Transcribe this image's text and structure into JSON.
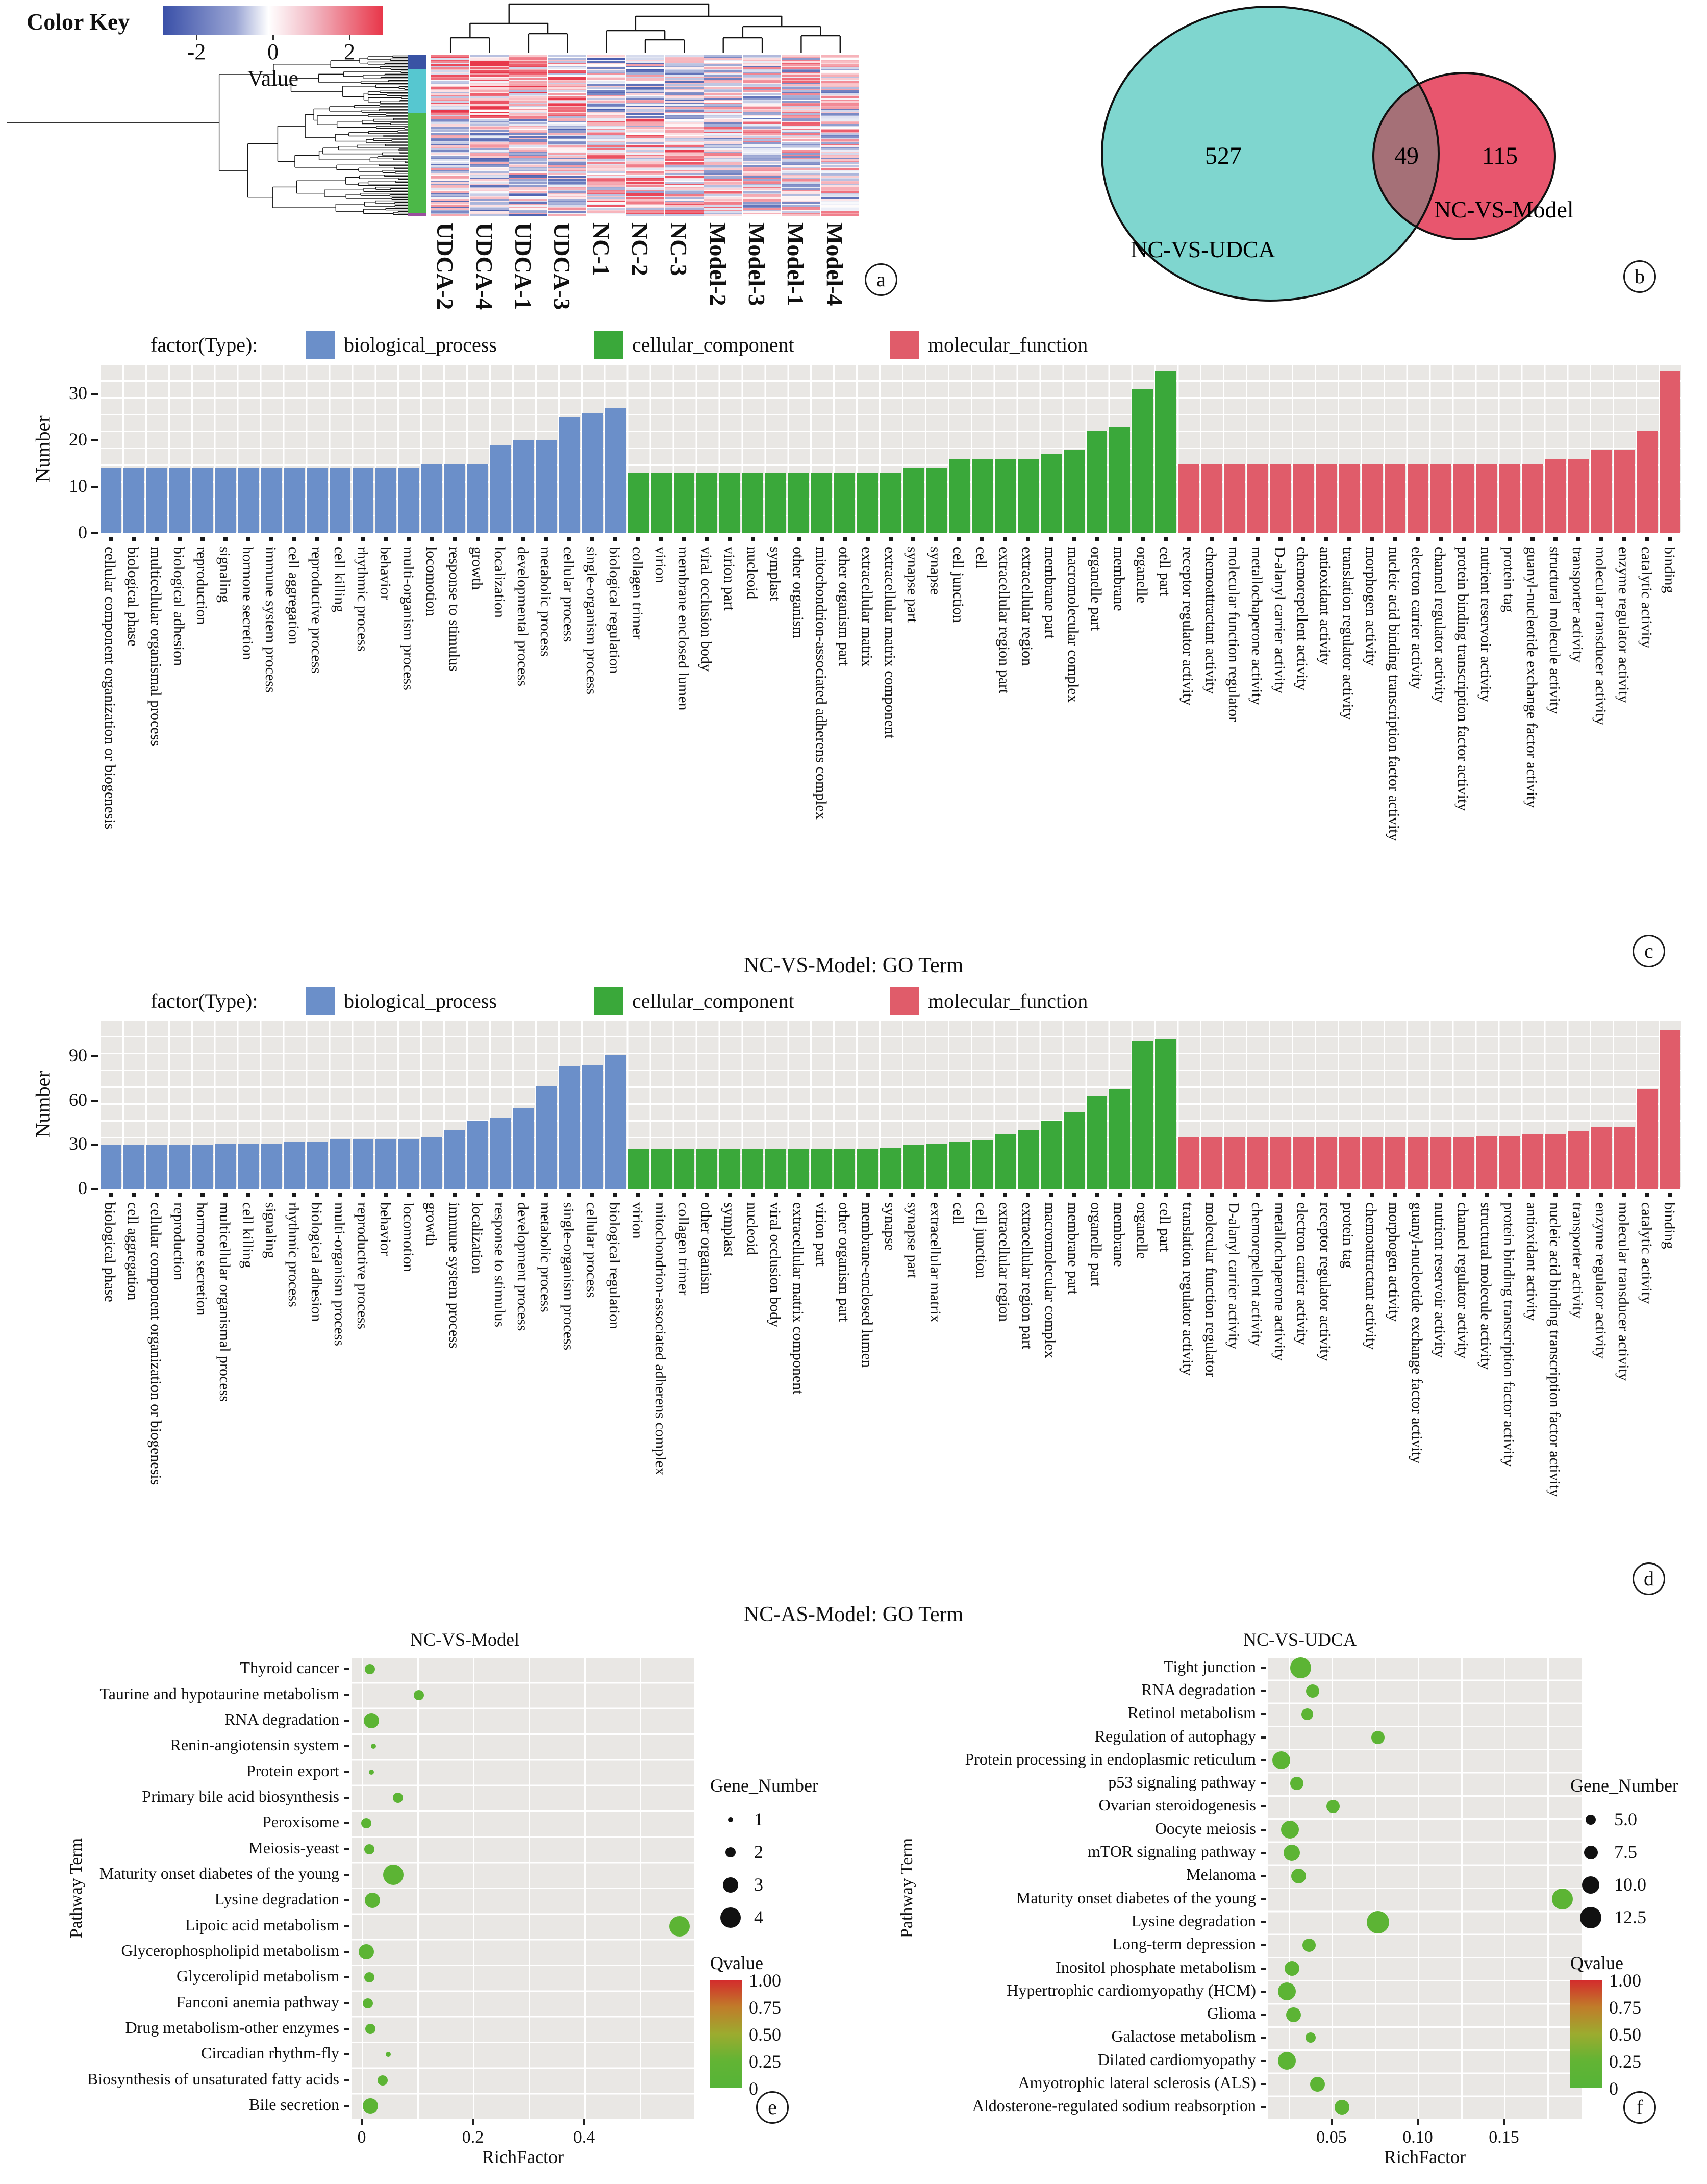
{
  "chart_data": [
    {
      "id": "a",
      "type": "heatmap",
      "title": "Color Key",
      "color_key": {
        "ticks": [
          "-2",
          "0",
          "2"
        ],
        "label": "Value"
      },
      "palette": {
        "low": "#3a50a8",
        "mid": "#ffffff",
        "high": "#e8374a"
      },
      "samples": [
        "UDCA-2",
        "UDCA-4",
        "UDCA-1",
        "UDCA-3",
        "NC-1",
        "NC-2",
        "NC-3",
        "Model-2",
        "Model-3",
        "Model-1",
        "Model-4"
      ],
      "clusters": [
        {
          "color": "#3953a4",
          "frac": 0.09
        },
        {
          "color": "#56c7d0",
          "frac": 0.27
        },
        {
          "color": "#4cb848",
          "frac": 0.625
        },
        {
          "color": "#9a4f9e",
          "frac": 0.015
        }
      ],
      "badge": "a"
    },
    {
      "id": "b",
      "type": "venn",
      "sets": [
        {
          "label": "NC-VS-UDCA",
          "count": 527,
          "color": "#7fd6cf"
        },
        {
          "label": "NC-VS-Model",
          "count": 115,
          "color": "#e8566e"
        }
      ],
      "overlap": 49,
      "overlap_color": "#a57077",
      "badge": "b"
    },
    {
      "id": "c",
      "type": "bar",
      "title": "NC-VS-Model: GO Term",
      "legend_title": "factor(Type):",
      "ylabel": "Number",
      "yticks": [
        0,
        10,
        20,
        30
      ],
      "ylim": [
        0,
        36.5
      ],
      "series": [
        {
          "name": "biological_process",
          "color": "#6b8fc9",
          "categories": [
            "cellular component organization or biogenesis",
            "biological phase",
            "multicellular organismal process",
            "biological adhesion",
            "reproduction",
            "signaling",
            "hormone secretion",
            "immune system process",
            "cell aggregation",
            "reproductive process",
            "cell killing",
            "rhythmic process",
            "behavior",
            "multi-organism process",
            "locomotion",
            "response to stimulus",
            "growth",
            "localization",
            "developmental process",
            "metabolic process",
            "cellular process",
            "single-organism process",
            "biological regulation"
          ],
          "values": [
            14,
            14,
            14,
            14,
            14,
            14,
            14,
            14,
            14,
            14,
            14,
            14,
            14,
            14,
            15,
            15,
            15,
            19,
            20,
            20,
            25,
            26,
            27
          ]
        },
        {
          "name": "cellular_component",
          "color": "#3aa83a",
          "categories": [
            "collagen trimer",
            "virion",
            "membrane enclosed lumen",
            "viral occlusion body",
            "virion part",
            "nucleoid",
            "symplast",
            "other organism",
            "mitochondrion-associated adherens complex",
            "other organism part",
            "extracellular matrix",
            "extracellular matrix component",
            "synapse part",
            "synapse",
            "cell junction",
            "cell",
            "extracellular region part",
            "extracellular region",
            "membrane part",
            "macromolecular complex",
            "organelle part",
            "membrane",
            "organelle",
            "cell part"
          ],
          "values": [
            13,
            13,
            13,
            13,
            13,
            13,
            13,
            13,
            13,
            13,
            13,
            13,
            14,
            14,
            16,
            16,
            16,
            16,
            17,
            18,
            22,
            23,
            31,
            35
          ]
        },
        {
          "name": "molecular_function",
          "color": "#e05c6a",
          "categories": [
            "receptor regulator activity",
            "chemoattractant activity",
            "molecular function regulator",
            "metallochaperone activity",
            "D-alanyl carrier activity",
            "chemorepellent activity",
            "antioxidant activity",
            "translation regulator activity",
            "morphogen activity",
            "nucleic acid binding transcription factor activity",
            "electron carrier activity",
            "channel regulator activity",
            "protein binding transcription factor activity",
            "nutrient reservoir activity",
            "protein tag",
            "guanyl-nucleotide exchange factor activity",
            "structural molecule activity",
            "transporter activity",
            "molecular transducer activity",
            "enzyme regulator activity",
            "catalytic activity",
            "binding"
          ],
          "values": [
            15,
            15,
            15,
            15,
            15,
            15,
            15,
            15,
            15,
            15,
            15,
            15,
            15,
            15,
            15,
            15,
            16,
            16,
            18,
            18,
            22,
            35
          ]
        }
      ],
      "badge": "c"
    },
    {
      "id": "d",
      "type": "bar",
      "title": "NC-AS-Model: GO Term",
      "legend_title": "factor(Type):",
      "ylabel": "Number",
      "yticks": [
        0,
        30,
        60,
        90
      ],
      "ylim": [
        0,
        115
      ],
      "series": [
        {
          "name": "biological_process",
          "color": "#6b8fc9",
          "categories": [
            "biological phase",
            "cell aggregation",
            "cellular component organization or biogenesis",
            "reproduction",
            "hormone secretion",
            "multicellular organismal process",
            "cell killing",
            "signaling",
            "rhythmic process",
            "biological adhesion",
            "multi-organism process",
            "reproductive process",
            "behavior",
            "locomotion",
            "growth",
            "immune system process",
            "localization",
            "response to stimulus",
            "development process",
            "metabolic process",
            "single-organism process",
            "cellular process",
            "biological regulation"
          ],
          "values": [
            30,
            30,
            30,
            30,
            30,
            31,
            31,
            31,
            32,
            32,
            34,
            34,
            34,
            34,
            35,
            40,
            46,
            48,
            55,
            70,
            83,
            84,
            91
          ]
        },
        {
          "name": "cellular_component",
          "color": "#3aa83a",
          "categories": [
            "virion",
            "mitochondrion-associated adherens complex",
            "collagen trimer",
            "other organism",
            "symplast",
            "nucleoid",
            "viral occlusion body",
            "extracellular matrix component",
            "virion part",
            "other organism part",
            "membrane-enclosed lumen",
            "synapse",
            "synapse part",
            "extracellular matrix",
            "cell",
            "cell junction",
            "extracellular region",
            "extracellular region part",
            "macromolecular complex",
            "membrane part",
            "organelle part",
            "membrane",
            "organelle",
            "cell part"
          ],
          "values": [
            27,
            27,
            27,
            27,
            27,
            27,
            27,
            27,
            27,
            27,
            27,
            28,
            30,
            31,
            32,
            33,
            37,
            40,
            46,
            52,
            63,
            68,
            100,
            102
          ]
        },
        {
          "name": "molecular_function",
          "color": "#e05c6a",
          "categories": [
            "translation regulator activity",
            "molecular function regulator",
            "D-alanyl carrier activity",
            "chemorepellent activity",
            "metallochaperone activity",
            "electron carrier activity",
            "receptor regulator activity",
            "protein tag",
            "chemoattractant activity",
            "morphogen activity",
            "guanyl-nucleotide exchange factor activity",
            "nutrient reservoir activity",
            "channel regulator activity",
            "structural molecule activity",
            "protein binding transcription factor activity",
            "antioxidant activity",
            "nucleic acid binding transcription factor activity",
            "transporter activity",
            "enzyme regulator activity",
            "molecular transducer activity",
            "catalytic activity",
            "binding"
          ],
          "values": [
            35,
            35,
            35,
            35,
            35,
            35,
            35,
            35,
            35,
            35,
            35,
            35,
            35,
            36,
            36,
            37,
            37,
            39,
            42,
            42,
            68,
            108
          ]
        }
      ],
      "badge": "d"
    },
    {
      "id": "e",
      "type": "scatter",
      "title": "NC-VS-Model",
      "xlabel": "RichFactor",
      "ylabel": "Pathway Term",
      "xlim": [
        -0.02,
        0.6
      ],
      "dot_color": "#5cb434",
      "qvalue_all": 0,
      "xticks": [
        {
          "v": 0,
          "label": "0"
        },
        {
          "v": 0.2,
          "label": "0.2"
        },
        {
          "v": 0.4,
          "label": "0.4"
        }
      ],
      "legend": {
        "size_title": "Gene_Number",
        "sizes": [
          "1",
          "2",
          "3",
          "4"
        ],
        "q_title": "Qvalue",
        "q_ticks": [
          "1.00",
          "0.75",
          "0.50",
          "0.25",
          "0"
        ],
        "q_colors": [
          "#d42a2c",
          "#c07c2a",
          "#9cab2f",
          "#62b434",
          "#55b438"
        ]
      },
      "points": [
        {
          "term": "Thyroid cancer",
          "rich": 0.015,
          "genes": 2
        },
        {
          "term": "Taurine and hypotaurine metabolism",
          "rich": 0.103,
          "genes": 2
        },
        {
          "term": "RNA degradation",
          "rich": 0.017,
          "genes": 3
        },
        {
          "term": "Renin-angiotensin system",
          "rich": 0.021,
          "genes": 1
        },
        {
          "term": "Protein export",
          "rich": 0.017,
          "genes": 1
        },
        {
          "term": "Primary bile acid biosynthesis",
          "rich": 0.065,
          "genes": 2
        },
        {
          "term": "Peroxisome",
          "rich": 0.008,
          "genes": 2
        },
        {
          "term": "Meiosis-yeast",
          "rich": 0.014,
          "genes": 2
        },
        {
          "term": "Maturity onset diabetes of the young",
          "rich": 0.057,
          "genes": 4
        },
        {
          "term": "Lysine degradation",
          "rich": 0.019,
          "genes": 3
        },
        {
          "term": "Lipoic acid metabolism",
          "rich": 0.572,
          "genes": 4
        },
        {
          "term": "Glycerophospholipid metabolism",
          "rich": 0.008,
          "genes": 3
        },
        {
          "term": "Glycerolipid metabolism",
          "rich": 0.014,
          "genes": 2
        },
        {
          "term": "Fanconi anemia pathway",
          "rich": 0.011,
          "genes": 2
        },
        {
          "term": "Drug metabolism-other enzymes",
          "rich": 0.016,
          "genes": 2
        },
        {
          "term": "Circadian rhythm-fly",
          "rich": 0.048,
          "genes": 1
        },
        {
          "term": "Biosynthesis of unsaturated fatty acids",
          "rich": 0.038,
          "genes": 2
        },
        {
          "term": "Bile secretion",
          "rich": 0.016,
          "genes": 3
        }
      ],
      "badge": "e"
    },
    {
      "id": "f",
      "type": "scatter",
      "title": "NC-VS-UDCA",
      "xlabel": "RichFactor",
      "ylabel": "Pathway Term",
      "xlim": [
        0.013,
        0.195
      ],
      "dot_color": "#5cb434",
      "qvalue_all": 0,
      "xticks": [
        {
          "v": 0.05,
          "label": "0.05"
        },
        {
          "v": 0.1,
          "label": "0.10"
        },
        {
          "v": 0.15,
          "label": "0.15"
        }
      ],
      "legend": {
        "size_title": "Gene_Number",
        "sizes": [
          "5.0",
          "7.5",
          "10.0",
          "12.5"
        ],
        "q_title": "Qvalue",
        "q_ticks": [
          "1.00",
          "0.75",
          "0.50",
          "0.25",
          "0"
        ],
        "q_colors": [
          "#d42a2c",
          "#c07c2a",
          "#9cab2f",
          "#62b434",
          "#55b438"
        ]
      },
      "points": [
        {
          "term": "Tight junction",
          "rich": 0.032,
          "genes": 12
        },
        {
          "term": "RNA degradation",
          "rich": 0.039,
          "genes": 7
        },
        {
          "term": "Retinol metabolism",
          "rich": 0.036,
          "genes": 6
        },
        {
          "term": "Regulation of autophagy",
          "rich": 0.077,
          "genes": 7
        },
        {
          "term": "Protein processing in endoplasmic reticulum",
          "rich": 0.021,
          "genes": 10
        },
        {
          "term": "p53 signaling pathway",
          "rich": 0.03,
          "genes": 7
        },
        {
          "term": "Ovarian steroidogenesis",
          "rich": 0.051,
          "genes": 7
        },
        {
          "term": "Oocyte meiosis",
          "rich": 0.026,
          "genes": 10
        },
        {
          "term": "mTOR signaling pathway",
          "rich": 0.027,
          "genes": 9
        },
        {
          "term": "Melanoma",
          "rich": 0.031,
          "genes": 8
        },
        {
          "term": "Maturity onset diabetes of the young",
          "rich": 0.184,
          "genes": 12
        },
        {
          "term": "Lysine degradation",
          "rich": 0.077,
          "genes": 13
        },
        {
          "term": "Long-term depression",
          "rich": 0.037,
          "genes": 7
        },
        {
          "term": "Inositol phosphate metabolism",
          "rich": 0.027,
          "genes": 8
        },
        {
          "term": "Hypertrophic cardiomyopathy (HCM)",
          "rich": 0.024,
          "genes": 10
        },
        {
          "term": "Glioma",
          "rich": 0.028,
          "genes": 8
        },
        {
          "term": "Galactose metabolism",
          "rich": 0.038,
          "genes": 5
        },
        {
          "term": "Dilated cardiomyopathy",
          "rich": 0.024,
          "genes": 10
        },
        {
          "term": "Amyotrophic lateral sclerosis (ALS)",
          "rich": 0.042,
          "genes": 8
        },
        {
          "term": "Aldosterone-regulated sodium reabsorption",
          "rich": 0.056,
          "genes": 8
        }
      ],
      "badge": "f"
    }
  ]
}
